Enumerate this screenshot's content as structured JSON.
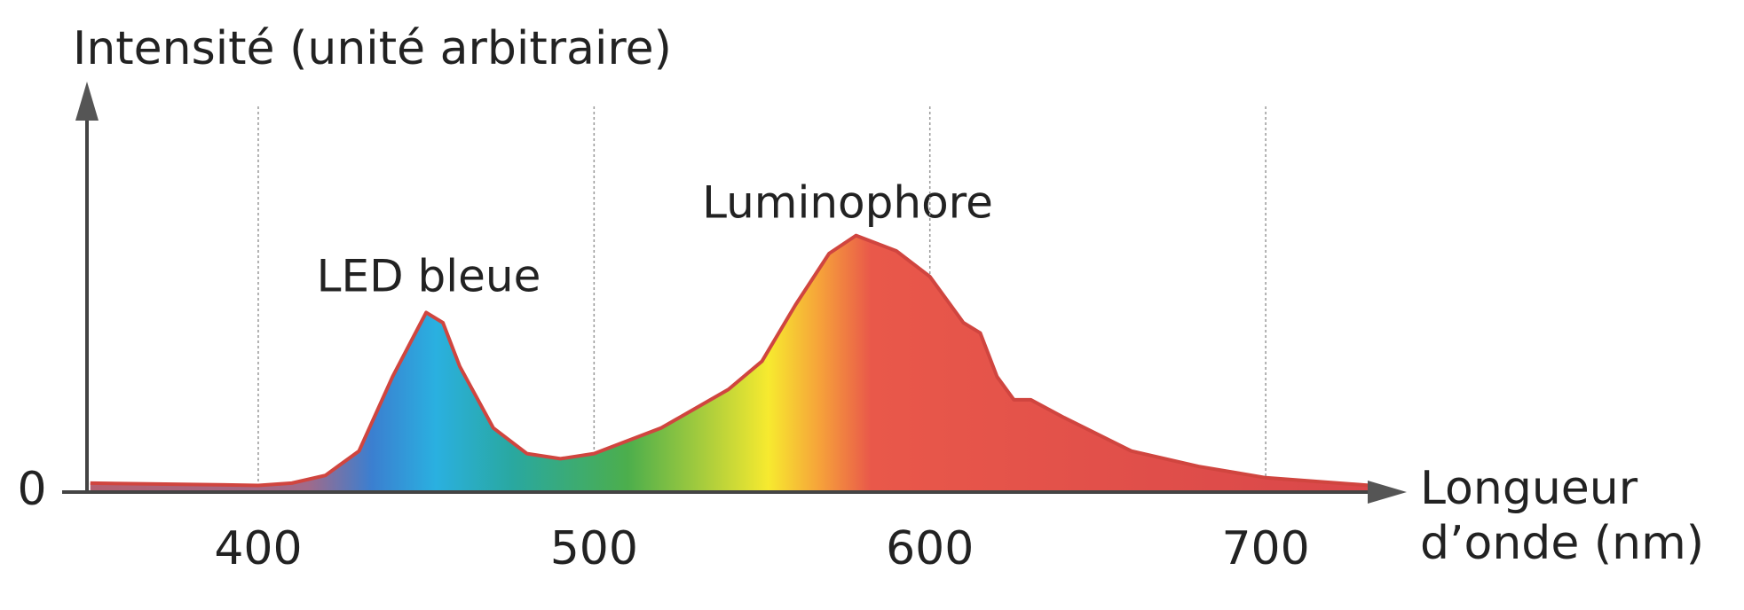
{
  "chart_data": {
    "type": "area",
    "y_label": "Intensité (unité arbitraire)",
    "x_label": "Longueur d’onde (nm)",
    "annotations": [
      "LED bleue",
      "Luminophore"
    ],
    "x": [
      350,
      380,
      400,
      410,
      420,
      430,
      440,
      450,
      455,
      460,
      470,
      480,
      490,
      500,
      520,
      540,
      550,
      560,
      570,
      578,
      590,
      600,
      610,
      615,
      620,
      625,
      630,
      640,
      660,
      680,
      700,
      731
    ],
    "values": [
      3.5,
      3,
      2.6,
      3.5,
      6.5,
      16,
      45,
      70,
      66,
      49,
      25,
      15,
      13,
      15,
      25,
      40,
      51,
      73,
      93,
      100,
      94,
      84,
      66,
      62,
      45,
      36,
      36,
      29,
      16,
      10,
      5.6,
      2.6
    ],
    "color": "#d0453f",
    "xlim": [
      349,
      742
    ],
    "xticks": [
      400,
      500,
      600,
      700
    ],
    "ylim": [
      0,
      160
    ],
    "yticks": [
      0
    ],
    "grid": true
  }
}
